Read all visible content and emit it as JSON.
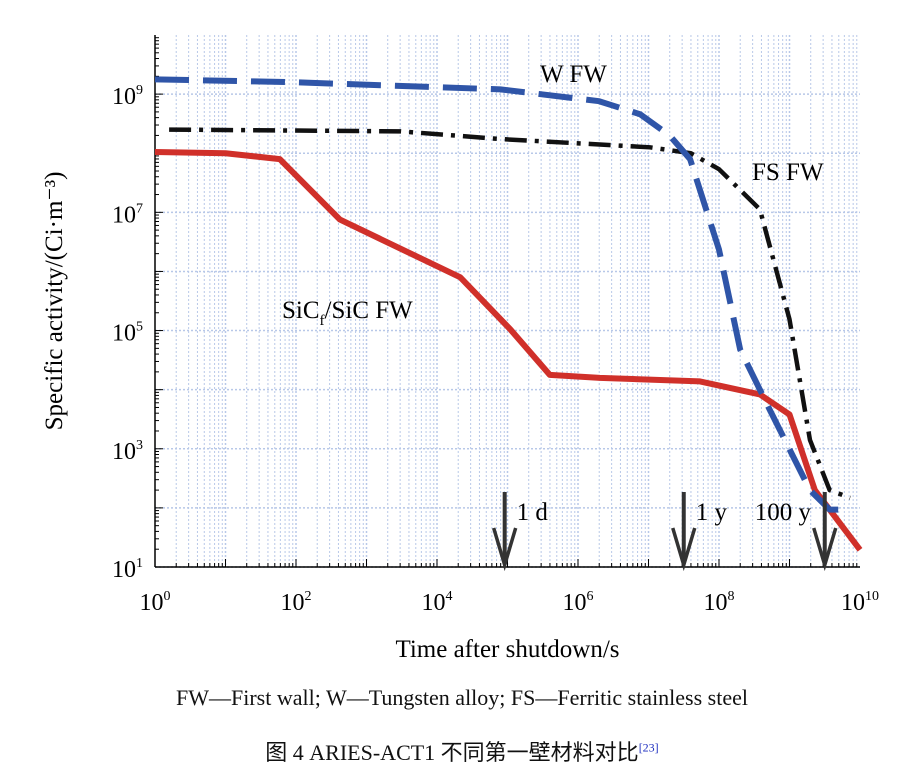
{
  "chart_data": {
    "type": "line",
    "title": "",
    "xlabel": "Time after shutdown/s",
    "ylabel": "Specific activity/(Ci·m⁻³)",
    "xscale": "log",
    "yscale": "log",
    "xlim_log10": [
      0,
      10
    ],
    "ylim_log10": [
      1,
      10
    ],
    "x_ticks": [
      {
        "exp": "0"
      },
      {
        "exp": "2"
      },
      {
        "exp": "4"
      },
      {
        "exp": "6"
      },
      {
        "exp": "8"
      },
      {
        "exp": "10"
      }
    ],
    "y_ticks": [
      {
        "exp": "1"
      },
      {
        "exp": "3"
      },
      {
        "exp": "5"
      },
      {
        "exp": "7"
      },
      {
        "exp": "9"
      }
    ],
    "tick_base": "10",
    "grid": true,
    "series": [
      {
        "name": "W FW",
        "color": "#2f55a8",
        "dash": "long-dash",
        "points_log10": [
          [
            0,
            9.25
          ],
          [
            2,
            9.2
          ],
          [
            4.9,
            9.08
          ],
          [
            6.3,
            8.88
          ],
          [
            6.88,
            8.66
          ],
          [
            7.3,
            8.3
          ],
          [
            7.59,
            7.9
          ],
          [
            8.0,
            6.37
          ],
          [
            8.3,
            4.68
          ],
          [
            8.72,
            3.66
          ],
          [
            9.29,
            2.3
          ],
          [
            9.57,
            1.97
          ],
          [
            9.86,
            1.97
          ]
        ]
      },
      {
        "name": "FS FW",
        "color": "#111111",
        "dash": "dash-dot",
        "points_log10": [
          [
            0.2,
            8.4
          ],
          [
            3.48,
            8.37
          ],
          [
            4.9,
            8.24
          ],
          [
            7.02,
            8.1
          ],
          [
            7.6,
            8.0
          ],
          [
            8.0,
            7.73
          ],
          [
            8.58,
            7.05
          ],
          [
            9.0,
            5.19
          ],
          [
            9.29,
            3.15
          ],
          [
            9.57,
            2.3
          ],
          [
            9.86,
            2.17
          ]
        ]
      },
      {
        "name": "SiCf/SiC FW",
        "color": "#d0302a",
        "dash": "solid",
        "points_log10": [
          [
            0,
            8.02
          ],
          [
            1,
            8.0
          ],
          [
            1.77,
            7.9
          ],
          [
            2.62,
            6.88
          ],
          [
            4.33,
            5.9
          ],
          [
            5.04,
            5.02
          ],
          [
            5.6,
            4.25
          ],
          [
            6.31,
            4.2
          ],
          [
            7.73,
            4.14
          ],
          [
            8.58,
            3.92
          ],
          [
            9.0,
            3.58
          ],
          [
            9.36,
            2.3
          ],
          [
            10,
            1.29
          ]
        ]
      }
    ],
    "series_labels": [
      {
        "text": "W FW"
      },
      {
        "text": "FS FW"
      },
      {
        "base": "SiC",
        "sub": "f",
        "rest": "/SiC FW"
      }
    ],
    "annotations": [
      {
        "text": "1 d",
        "x_log10": 4.96
      },
      {
        "text": "1 y",
        "x_log10": 7.5
      },
      {
        "text": "100 y",
        "x_log10": 9.5
      }
    ]
  },
  "legend_note": "FW—First wall; W—Tungsten alloy; FS—Ferritic stainless steel",
  "figure_caption": "图 4   ARIES-ACT1 不同第一壁材料对比",
  "citation": "[23]"
}
